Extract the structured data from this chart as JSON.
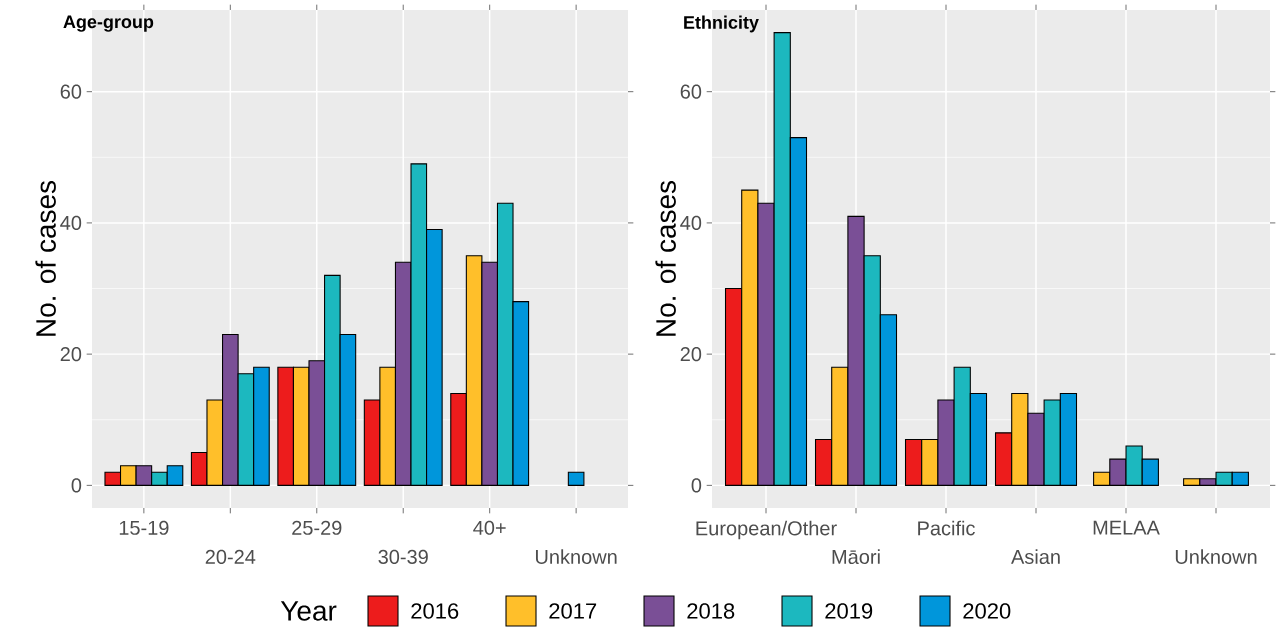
{
  "chart_data": [
    {
      "type": "bar",
      "title": "Age-group",
      "ylabel": "No. of cases",
      "legend_title": "Year",
      "legend": "bottom",
      "grid": true,
      "categories": [
        "15-19",
        "20-24",
        "25-29",
        "30-39",
        "40+",
        "Unknown"
      ],
      "ylim": [
        -3.45,
        72.45
      ],
      "yticks": [
        0,
        20,
        40,
        60
      ],
      "series": [
        {
          "name": "2016",
          "color": "#ed1c1c",
          "values": [
            2,
            5,
            18,
            13,
            14,
            null
          ]
        },
        {
          "name": "2017",
          "color": "#ffbf2a",
          "values": [
            3,
            13,
            18,
            18,
            35,
            null
          ]
        },
        {
          "name": "2018",
          "color": "#7a4f96",
          "values": [
            3,
            23,
            19,
            34,
            34,
            null
          ]
        },
        {
          "name": "2019",
          "color": "#1cb8bf",
          "values": [
            2,
            17,
            32,
            49,
            43,
            null
          ]
        },
        {
          "name": "2020",
          "color": "#0096db",
          "values": [
            3,
            18,
            23,
            39,
            28,
            2
          ]
        }
      ]
    },
    {
      "type": "bar",
      "title": "Ethnicity",
      "ylabel": "No. of cases",
      "grid": true,
      "categories": [
        "European/Other",
        "Māori",
        "Pacific",
        "Asian",
        "MELAA",
        "Unknown"
      ],
      "ylim": [
        -3.45,
        72.45
      ],
      "yticks": [
        0,
        20,
        40,
        60
      ],
      "series": [
        {
          "color": "#ed1c1c",
          "values": [
            30,
            7,
            7,
            8,
            null,
            null
          ]
        },
        {
          "color": "#ffbf2a",
          "values": [
            45,
            18,
            7,
            14,
            2,
            1
          ]
        },
        {
          "color": "#7a4f96",
          "values": [
            43,
            41,
            13,
            11,
            4,
            1
          ]
        },
        {
          "color": "#1cb8bf",
          "values": [
            69,
            35,
            18,
            13,
            6,
            2
          ]
        },
        {
          "color": "#0096db",
          "values": [
            53,
            26,
            14,
            14,
            4,
            2
          ]
        }
      ]
    }
  ]
}
